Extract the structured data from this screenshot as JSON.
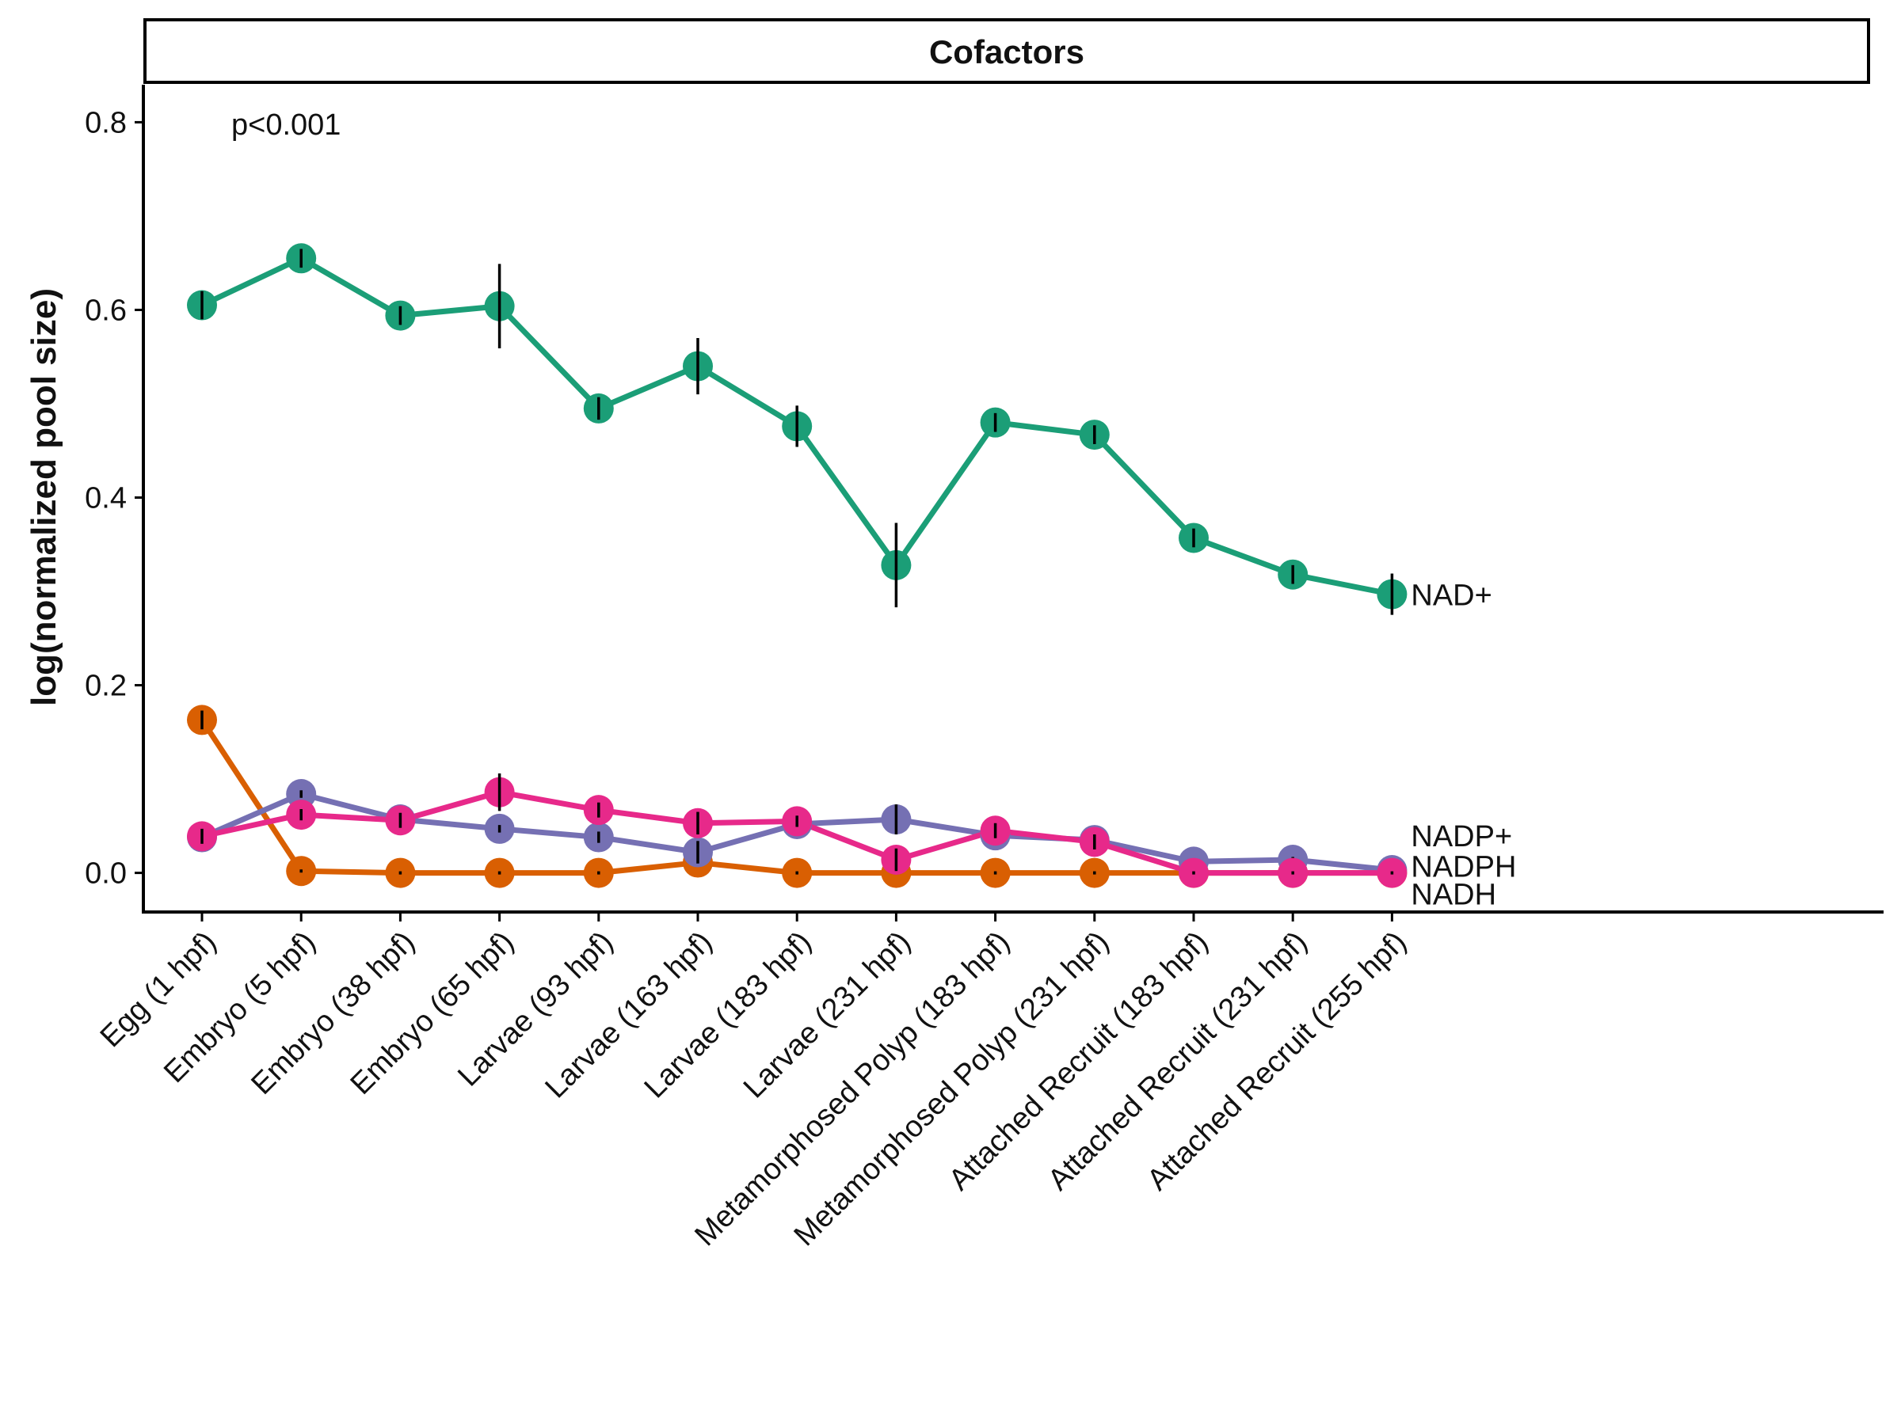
{
  "chart_data": {
    "type": "line",
    "title": "Cofactors",
    "xlabel": "",
    "ylabel": "log(normalized pool size)",
    "annotation": "p<0.001",
    "ylim": [
      -0.04,
      0.84
    ],
    "yticks": [
      "0.0",
      "0.2",
      "0.4",
      "0.6",
      "0.8"
    ],
    "ytick_values": [
      0.0,
      0.2,
      0.4,
      0.6,
      0.8
    ],
    "categories": [
      "Egg (1 hpf)",
      "Embryo (5 hpf)",
      "Embryo (38 hpf)",
      "Embryo (65 hpf)",
      "Larvae (93 hpf)",
      "Larvae (163 hpf)",
      "Larvae (183 hpf)",
      "Larvae (231 hpf)",
      "Metamorphosed Polyp (183 hpf)",
      "Metamorphosed Polyp (231 hpf)",
      "Attached Recruit (183 hpf)",
      "Attached Recruit (231 hpf)",
      "Attached Recruit (255 hpf)"
    ],
    "grid": false,
    "legend": "none; series labeled at line ends",
    "series": [
      {
        "name": "NAD+",
        "color": "#1b9e77",
        "values": [
          0.605,
          0.655,
          0.594,
          0.604,
          0.495,
          0.54,
          0.476,
          0.328,
          0.48,
          0.467,
          0.357,
          0.318,
          0.297
        ],
        "errors": [
          0.015,
          0.01,
          0.01,
          0.045,
          0.012,
          0.03,
          0.022,
          0.045,
          0.01,
          0.01,
          0.01,
          0.01,
          0.022
        ]
      },
      {
        "name": "NADP+",
        "color": "#7570b3",
        "values": [
          0.038,
          0.084,
          0.057,
          0.047,
          0.038,
          0.022,
          0.052,
          0.057,
          0.04,
          0.035,
          0.012,
          0.014,
          0.003
        ],
        "errors": [
          0.004,
          0.004,
          0.004,
          0.004,
          0.006,
          0.012,
          0.01,
          0.016,
          0.004,
          0.004,
          0.003,
          0.003,
          0.002
        ]
      },
      {
        "name": "NADPH",
        "color": "#e7298a",
        "values": [
          0.039,
          0.062,
          0.056,
          0.086,
          0.067,
          0.053,
          0.055,
          0.014,
          0.045,
          0.033,
          0.0,
          0.0,
          0.0
        ],
        "errors": [
          0.008,
          0.006,
          0.008,
          0.02,
          0.008,
          0.012,
          0.006,
          0.012,
          0.008,
          0.008,
          0.0,
          0.0,
          0.0
        ]
      },
      {
        "name": "NADH",
        "color": "#d95f02",
        "values": [
          0.163,
          0.002,
          0.0,
          0.0,
          0.0,
          0.011,
          0.0,
          0.0,
          0.0,
          0.0,
          0.0,
          0.0,
          0.0
        ],
        "errors": [
          0.01,
          0.001,
          0.0,
          0.0,
          0.0,
          0.003,
          0.0,
          0.0,
          0.0,
          0.0,
          0.0,
          0.0,
          0.0
        ]
      }
    ]
  }
}
